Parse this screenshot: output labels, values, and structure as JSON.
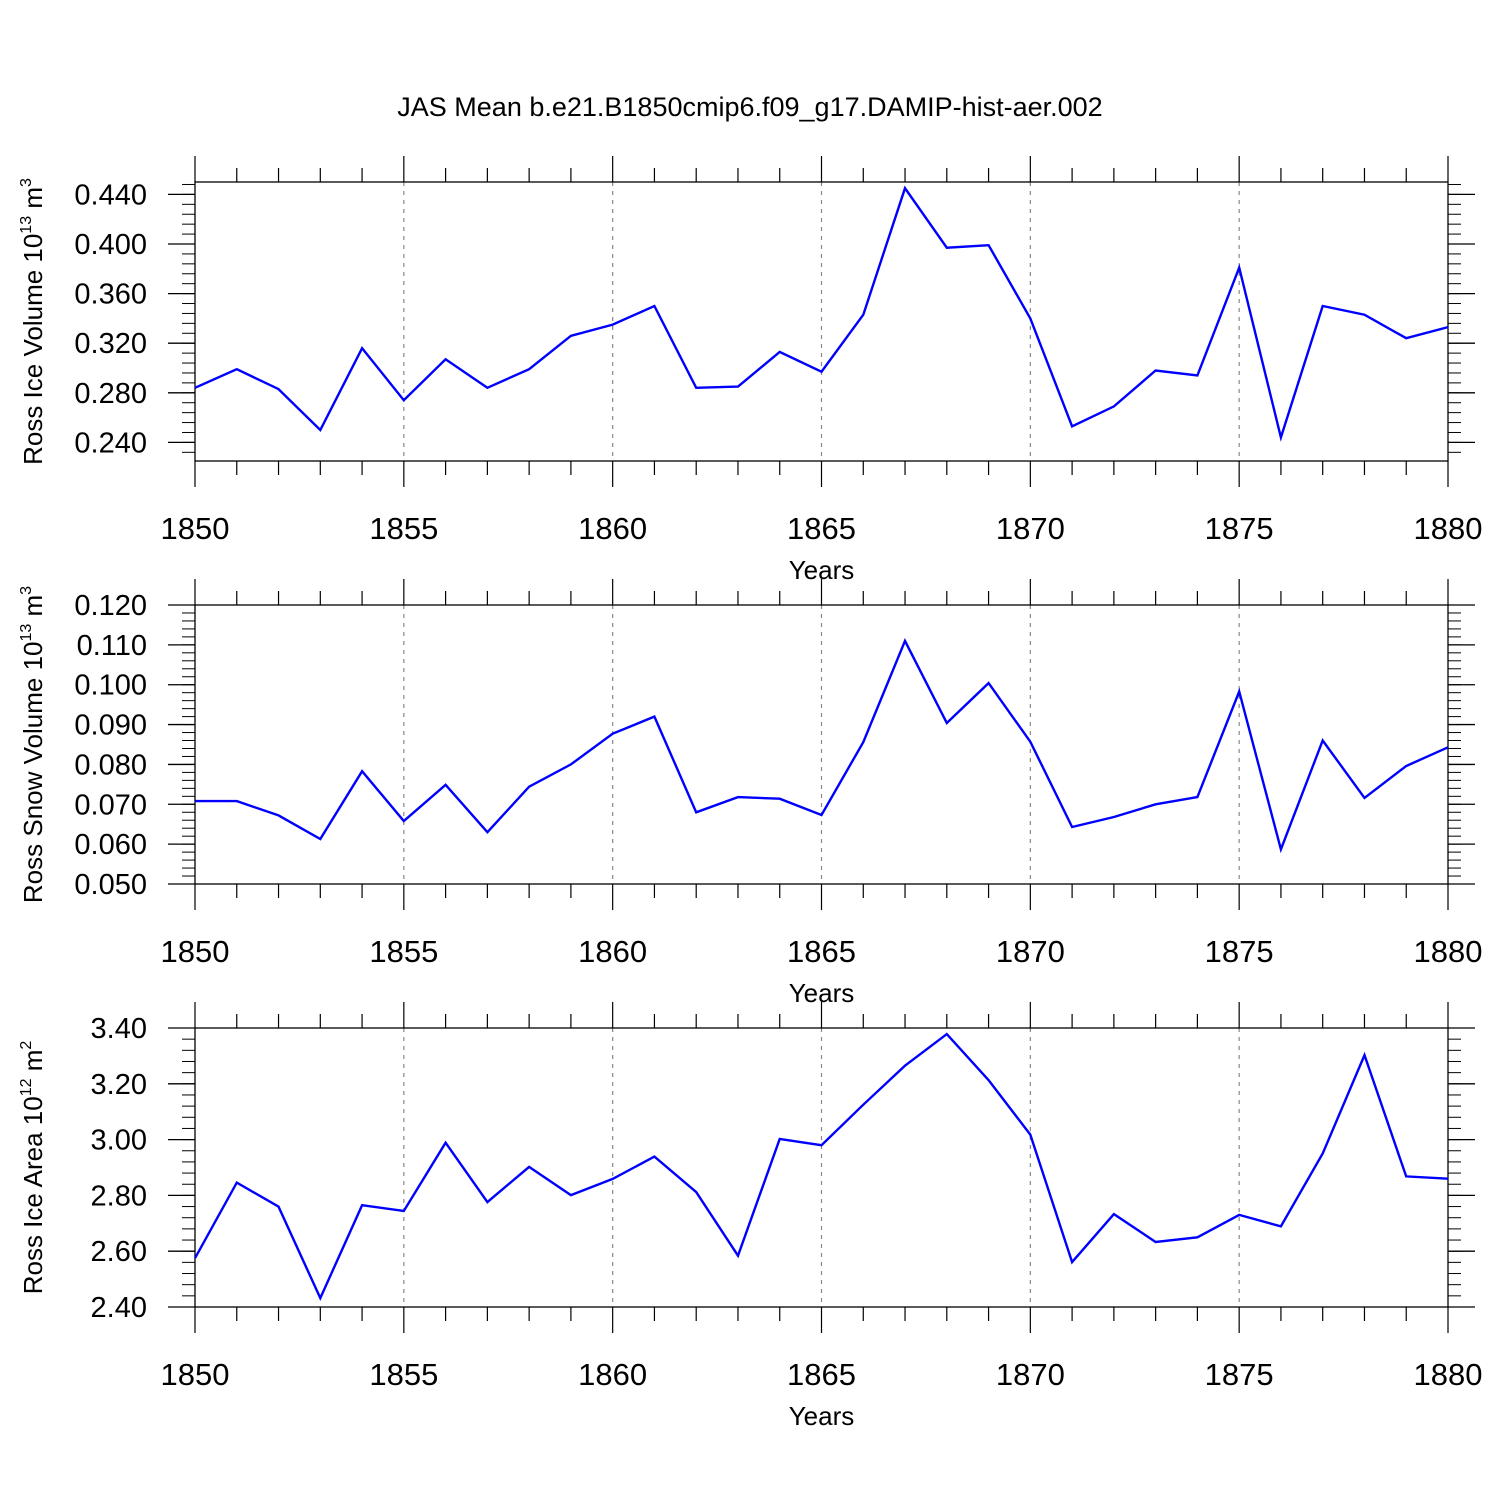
{
  "title": "JAS Mean b.e21.B1850cmip6.f09_g17.DAMIP-hist-aer.002",
  "colors": {
    "line": "#0000ff",
    "axis": "#000000",
    "grid": "#888888"
  },
  "chart_data": [
    {
      "type": "line",
      "ylabel": "Ross Ice Volume 10",
      "ylabel_sup": "13",
      "ylabel_unit": "m",
      "ylabel_unit_sup": "3",
      "xlabel": "Years",
      "xlim": [
        1850,
        1880
      ],
      "ylim": [
        0.225,
        0.45
      ],
      "yticks": [
        0.24,
        0.28,
        0.32,
        0.36,
        0.4,
        0.44
      ],
      "ytick_labels": [
        "0.240",
        "0.280",
        "0.320",
        "0.360",
        "0.400",
        "0.440"
      ],
      "xticks": [
        1850,
        1855,
        1860,
        1865,
        1870,
        1875,
        1880
      ],
      "xtick_labels": [
        "1850",
        "1855",
        "1860",
        "1865",
        "1870",
        "1875",
        "1880"
      ],
      "grid": "vertical dashed",
      "series": [
        {
          "x": [
            1850,
            1851,
            1852,
            1853,
            1854,
            1855,
            1856,
            1857,
            1858,
            1859,
            1860,
            1861,
            1862,
            1863,
            1864,
            1865,
            1866,
            1867,
            1868,
            1869,
            1870,
            1871,
            1872,
            1873,
            1874,
            1875,
            1876,
            1877,
            1878,
            1879,
            1880
          ],
          "values": [
            0.284,
            0.299,
            0.283,
            0.25,
            0.316,
            0.274,
            0.307,
            0.284,
            0.299,
            0.326,
            0.335,
            0.35,
            0.284,
            0.285,
            0.313,
            0.297,
            0.343,
            0.445,
            0.397,
            0.399,
            0.34,
            0.253,
            0.269,
            0.298,
            0.294,
            0.381,
            0.244,
            0.35,
            0.343,
            0.324,
            0.333
          ]
        }
      ]
    },
    {
      "type": "line",
      "ylabel": "Ross Snow Volume 10",
      "ylabel_sup": "13",
      "ylabel_unit": "m",
      "ylabel_unit_sup": "3",
      "xlabel": "Years",
      "xlim": [
        1850,
        1880
      ],
      "ylim": [
        0.05,
        0.12
      ],
      "yticks": [
        0.05,
        0.06,
        0.07,
        0.08,
        0.09,
        0.1,
        0.11,
        0.12
      ],
      "ytick_labels": [
        "0.050",
        "0.060",
        "0.070",
        "0.080",
        "0.090",
        "0.100",
        "0.110",
        "0.120"
      ],
      "xticks": [
        1850,
        1855,
        1860,
        1865,
        1870,
        1875,
        1880
      ],
      "xtick_labels": [
        "1850",
        "1855",
        "1860",
        "1865",
        "1870",
        "1875",
        "1880"
      ],
      "grid": "vertical dashed",
      "series": [
        {
          "x": [
            1850,
            1851,
            1852,
            1853,
            1854,
            1855,
            1856,
            1857,
            1858,
            1859,
            1860,
            1861,
            1862,
            1863,
            1864,
            1865,
            1866,
            1867,
            1868,
            1869,
            1870,
            1871,
            1872,
            1873,
            1874,
            1875,
            1876,
            1877,
            1878,
            1879,
            1880
          ],
          "values": [
            0.0708,
            0.0708,
            0.0672,
            0.0613,
            0.0783,
            0.0658,
            0.0749,
            0.063,
            0.0744,
            0.08,
            0.0877,
            0.092,
            0.068,
            0.0718,
            0.0714,
            0.0673,
            0.0856,
            0.111,
            0.0904,
            0.1004,
            0.0857,
            0.0643,
            0.0668,
            0.07,
            0.0718,
            0.0983,
            0.0587,
            0.086,
            0.0716,
            0.0796,
            0.0843
          ]
        }
      ]
    },
    {
      "type": "line",
      "ylabel": "Ross Ice Area 10",
      "ylabel_sup": "12",
      "ylabel_unit": "m",
      "ylabel_unit_sup": "2",
      "xlabel": "Years",
      "xlim": [
        1850,
        1880
      ],
      "ylim": [
        2.4,
        3.4
      ],
      "yticks": [
        2.4,
        2.6,
        2.8,
        3.0,
        3.2,
        3.4
      ],
      "ytick_labels": [
        "2.40",
        "2.60",
        "2.80",
        "3.00",
        "3.20",
        "3.40"
      ],
      "xticks": [
        1850,
        1855,
        1860,
        1865,
        1870,
        1875,
        1880
      ],
      "xtick_labels": [
        "1850",
        "1855",
        "1860",
        "1865",
        "1870",
        "1875",
        "1880"
      ],
      "grid": "vertical dashed",
      "series": [
        {
          "x": [
            1850,
            1851,
            1852,
            1853,
            1854,
            1855,
            1856,
            1857,
            1858,
            1859,
            1860,
            1861,
            1862,
            1863,
            1864,
            1865,
            1866,
            1867,
            1868,
            1869,
            1870,
            1871,
            1872,
            1873,
            1874,
            1875,
            1876,
            1877,
            1878,
            1879,
            1880
          ],
          "values": [
            2.575,
            2.846,
            2.76,
            2.432,
            2.765,
            2.744,
            2.989,
            2.776,
            2.902,
            2.801,
            2.859,
            2.939,
            2.812,
            2.584,
            3.002,
            2.98,
            3.125,
            3.265,
            3.378,
            3.213,
            3.018,
            2.561,
            2.733,
            2.633,
            2.65,
            2.73,
            2.689,
            2.95,
            3.303,
            2.868,
            2.86
          ]
        }
      ]
    }
  ]
}
